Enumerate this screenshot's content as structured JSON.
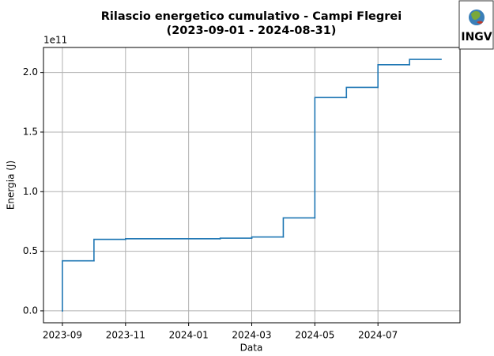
{
  "chart_data": {
    "type": "step",
    "title": "Rilascio energetico cumulativo - Campi Flegrei",
    "subtitle": "(2023-09-01 - 2024-08-31)",
    "x_label": "Data",
    "y_label": "Energia (J)",
    "y_offset_label": "1e11",
    "logo": "INGV",
    "x": [
      "2023-09",
      "2023-10",
      "2023-11",
      "2024-02",
      "2024-03",
      "2024-04",
      "2024-05",
      "2024-06",
      "2024-07",
      "2024-08",
      "2024-09"
    ],
    "values": [
      0,
      0.42,
      0.6,
      0.605,
      0.61,
      0.62,
      0.78,
      1.79,
      1.875,
      2.065,
      2.11
    ],
    "color": "#1f77b4",
    "ylim": [
      -0.1,
      2.21
    ],
    "yticks": [
      {
        "value": 0,
        "label": "0.0"
      },
      {
        "value": 0.5,
        "label": "0.5"
      },
      {
        "value": 1,
        "label": "1.0"
      },
      {
        "value": 1.5,
        "label": "1.5"
      },
      {
        "value": 2,
        "label": "2.0"
      }
    ],
    "xticks": [
      "2023-09",
      "2023-11",
      "2024-01",
      "2024-03",
      "2024-05",
      "2024-07"
    ],
    "grid": true
  }
}
